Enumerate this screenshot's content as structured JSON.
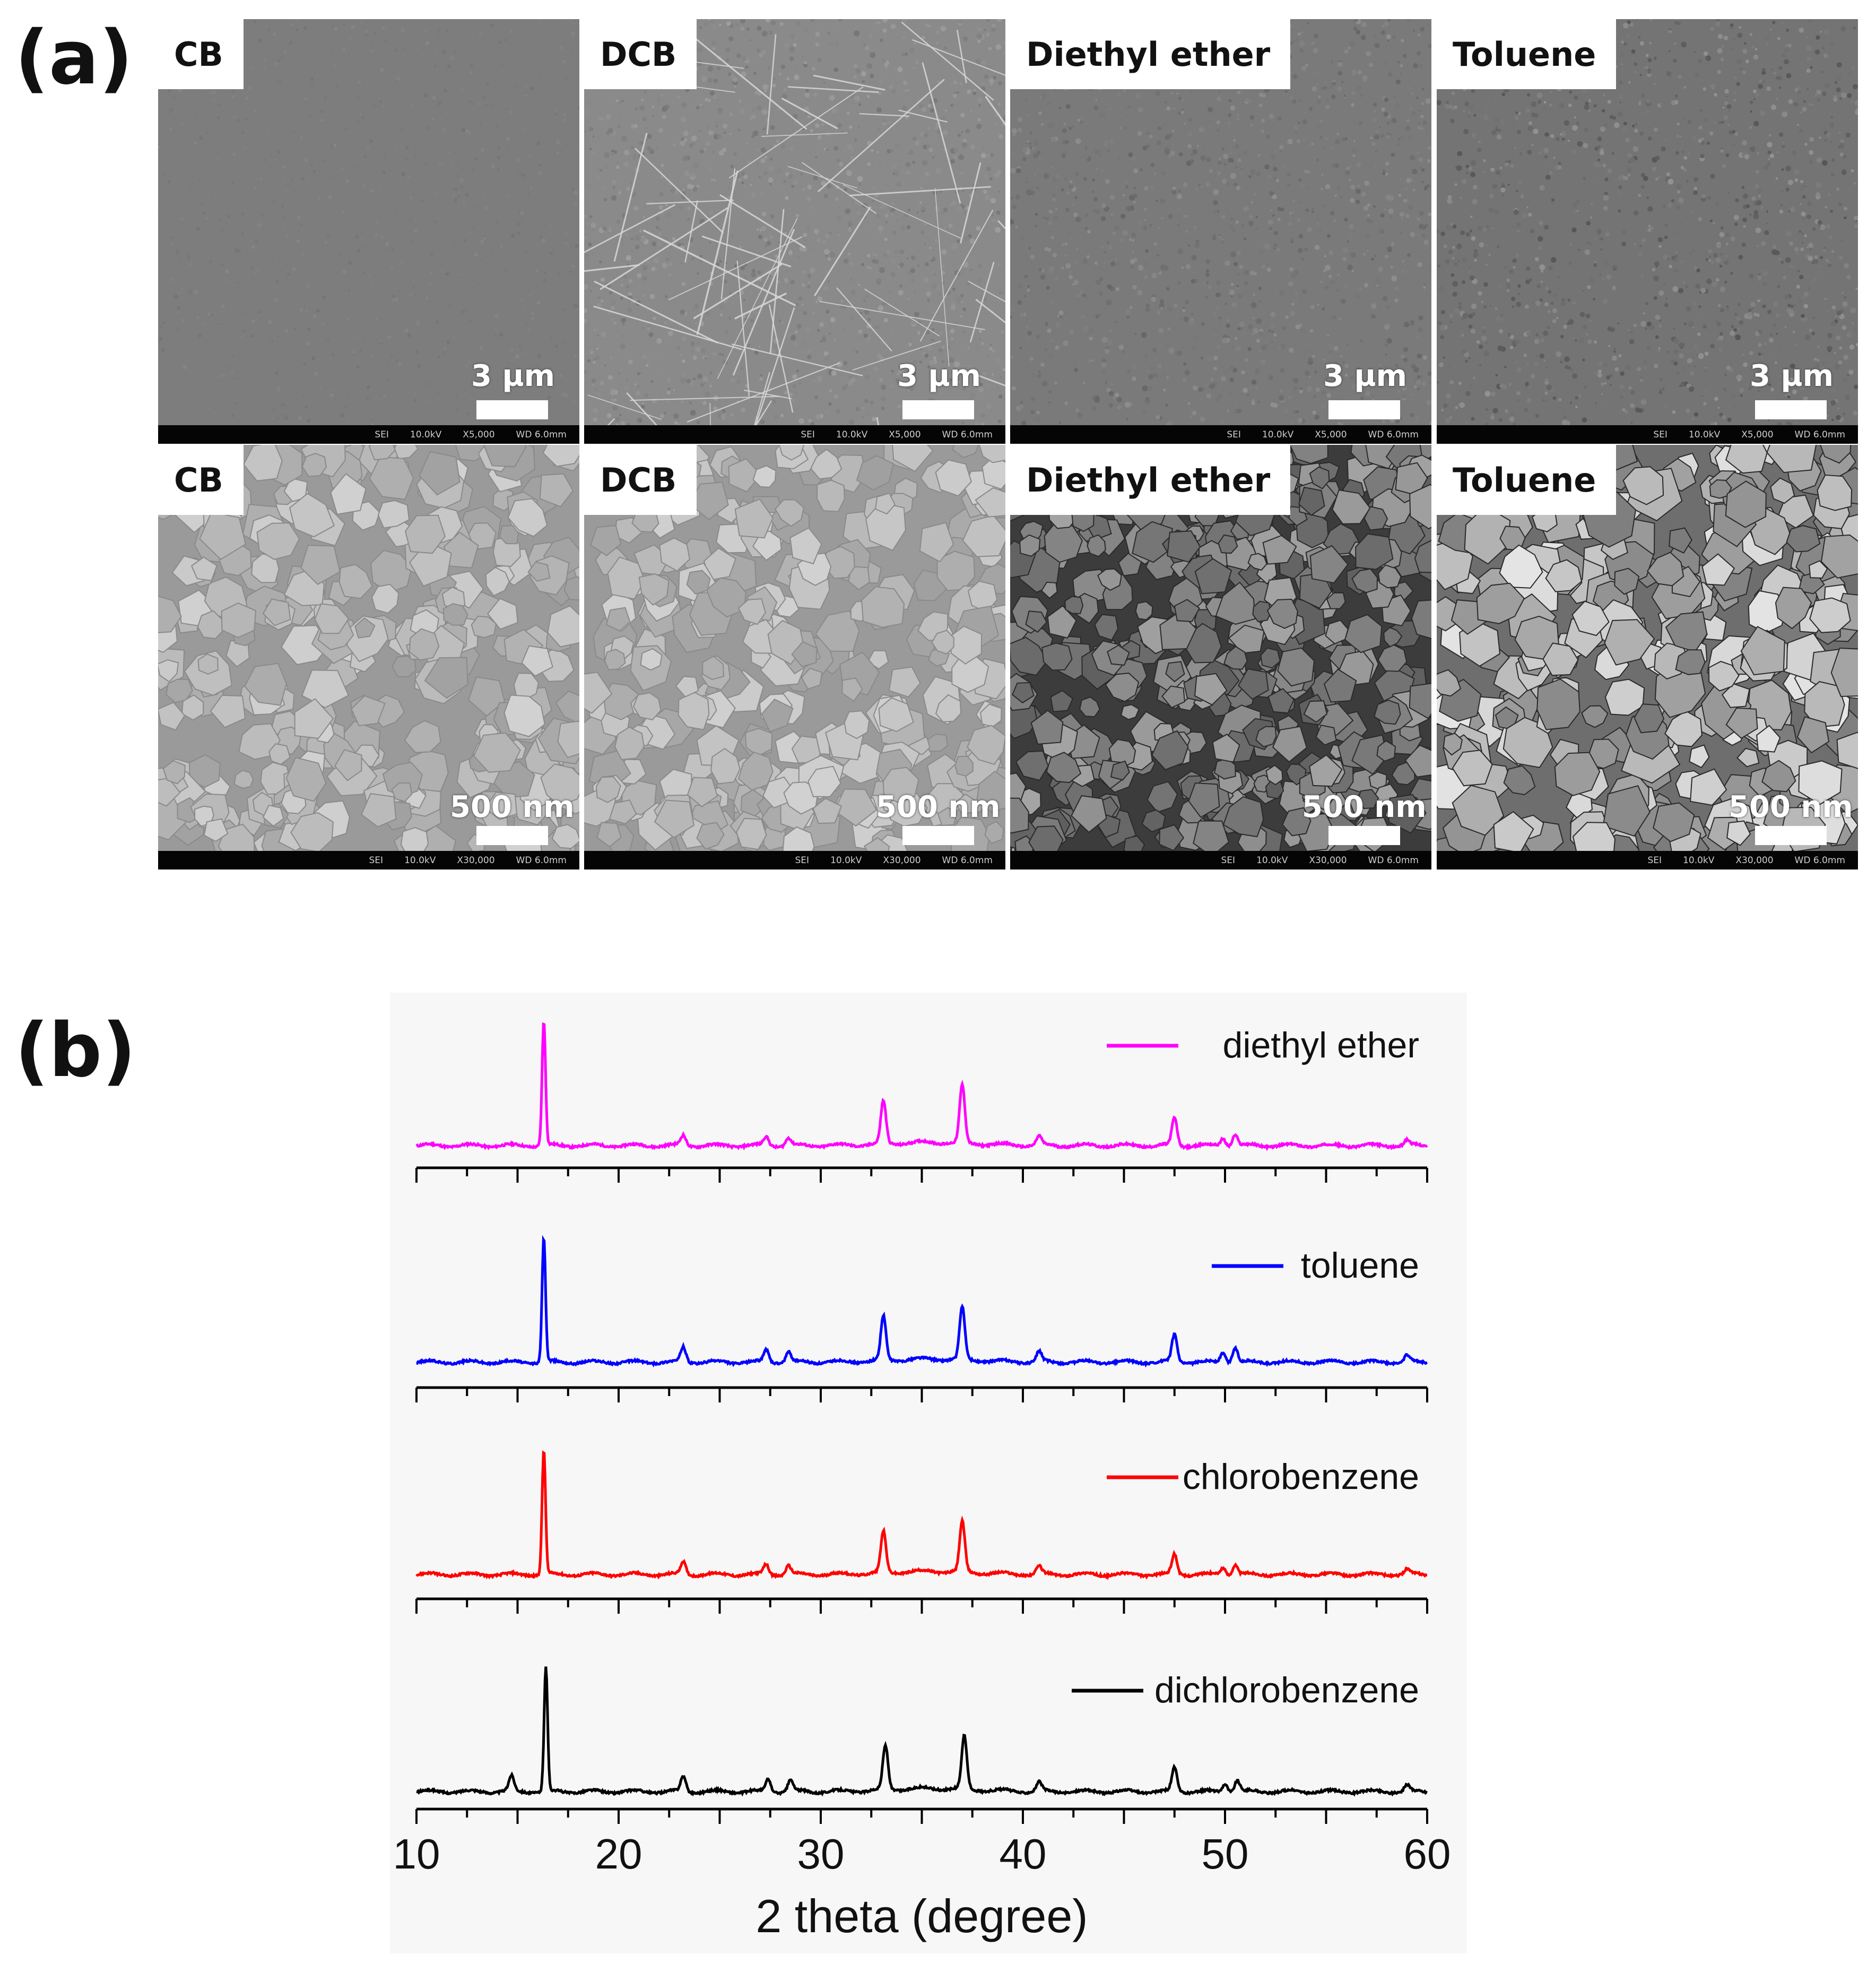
{
  "figure": {
    "panel_a_label": "(a)",
    "panel_b_label": "(b)"
  },
  "sem_panels": [
    {
      "title": "CB",
      "scale": "3 µm",
      "info": [
        "SEI",
        "10.0kV",
        "X5,000",
        "WD 6.0mm"
      ],
      "texture": "fine-smooth"
    },
    {
      "title": "DCB",
      "scale": "3 µm",
      "info": [
        "SEI",
        "10.0kV",
        "X5,000",
        "WD 6.0mm"
      ],
      "texture": "fine-needles"
    },
    {
      "title": "Diethyl ether",
      "scale": "3 µm",
      "info": [
        "SEI",
        "10.0kV",
        "X5,000",
        "WD 6.0mm"
      ],
      "texture": "fine-rough"
    },
    {
      "title": "Toluene",
      "scale": "3 µm",
      "info": [
        "SEI",
        "10.0kV",
        "X5,000",
        "WD 6.0mm"
      ],
      "texture": "fine-grainy"
    },
    {
      "title": "CB",
      "scale": "500 nm",
      "info": [
        "SEI",
        "10.0kV",
        "X30,000",
        "WD 6.0mm"
      ],
      "texture": "grains-light"
    },
    {
      "title": "DCB",
      "scale": "500 nm",
      "info": [
        "SEI",
        "10.0kV",
        "X30,000",
        "WD 6.0mm"
      ],
      "texture": "grains-light"
    },
    {
      "title": "Diethyl ether",
      "scale": "500 nm",
      "info": [
        "SEI",
        "10.0kV",
        "X30,000",
        "WD 6.0mm"
      ],
      "texture": "grains-dark"
    },
    {
      "title": "Toluene",
      "scale": "500 nm",
      "info": [
        "SEI",
        "10.0kV",
        "X30,000",
        "WD 6.0mm"
      ],
      "texture": "grains-contrast"
    }
  ],
  "chart_data": {
    "type": "line",
    "xlabel": "2 theta (degree)",
    "ylabel": "",
    "xlim": [
      10,
      60
    ],
    "xticks": [
      10,
      20,
      30,
      40,
      50,
      60
    ],
    "layout": "stacked",
    "series": [
      {
        "name": "diethyl ether",
        "color": "#ff00ff",
        "peaks": [
          [
            16.3,
            1.0
          ],
          [
            23.2,
            0.08
          ],
          [
            27.3,
            0.07
          ],
          [
            28.4,
            0.06
          ],
          [
            33.1,
            0.34
          ],
          [
            37.0,
            0.46
          ],
          [
            40.8,
            0.07
          ],
          [
            47.5,
            0.22
          ],
          [
            49.9,
            0.06
          ],
          [
            50.5,
            0.09
          ],
          [
            59.0,
            0.04
          ]
        ]
      },
      {
        "name": "toluene",
        "color": "#0000ff",
        "peaks": [
          [
            16.3,
            1.0
          ],
          [
            23.2,
            0.12
          ],
          [
            27.3,
            0.1
          ],
          [
            28.4,
            0.08
          ],
          [
            33.1,
            0.35
          ],
          [
            37.0,
            0.42
          ],
          [
            40.8,
            0.08
          ],
          [
            47.5,
            0.22
          ],
          [
            49.9,
            0.08
          ],
          [
            50.5,
            0.12
          ],
          [
            59.0,
            0.05
          ]
        ]
      },
      {
        "name": "chlorobenzene",
        "color": "#ff0000",
        "peaks": [
          [
            16.3,
            1.0
          ],
          [
            23.2,
            0.1
          ],
          [
            27.3,
            0.08
          ],
          [
            28.4,
            0.07
          ],
          [
            33.1,
            0.33
          ],
          [
            37.0,
            0.4
          ],
          [
            40.8,
            0.06
          ],
          [
            47.5,
            0.16
          ],
          [
            49.9,
            0.06
          ],
          [
            50.5,
            0.08
          ],
          [
            59.0,
            0.04
          ]
        ]
      },
      {
        "name": "dichlorobenzene",
        "color": "#000000",
        "peaks": [
          [
            14.7,
            0.12
          ],
          [
            16.4,
            1.0
          ],
          [
            23.2,
            0.12
          ],
          [
            27.4,
            0.1
          ],
          [
            28.5,
            0.09
          ],
          [
            33.2,
            0.35
          ],
          [
            37.1,
            0.42
          ],
          [
            40.8,
            0.07
          ],
          [
            47.5,
            0.19
          ],
          [
            50.0,
            0.07
          ],
          [
            50.6,
            0.09
          ],
          [
            59.0,
            0.05
          ]
        ]
      }
    ]
  }
}
